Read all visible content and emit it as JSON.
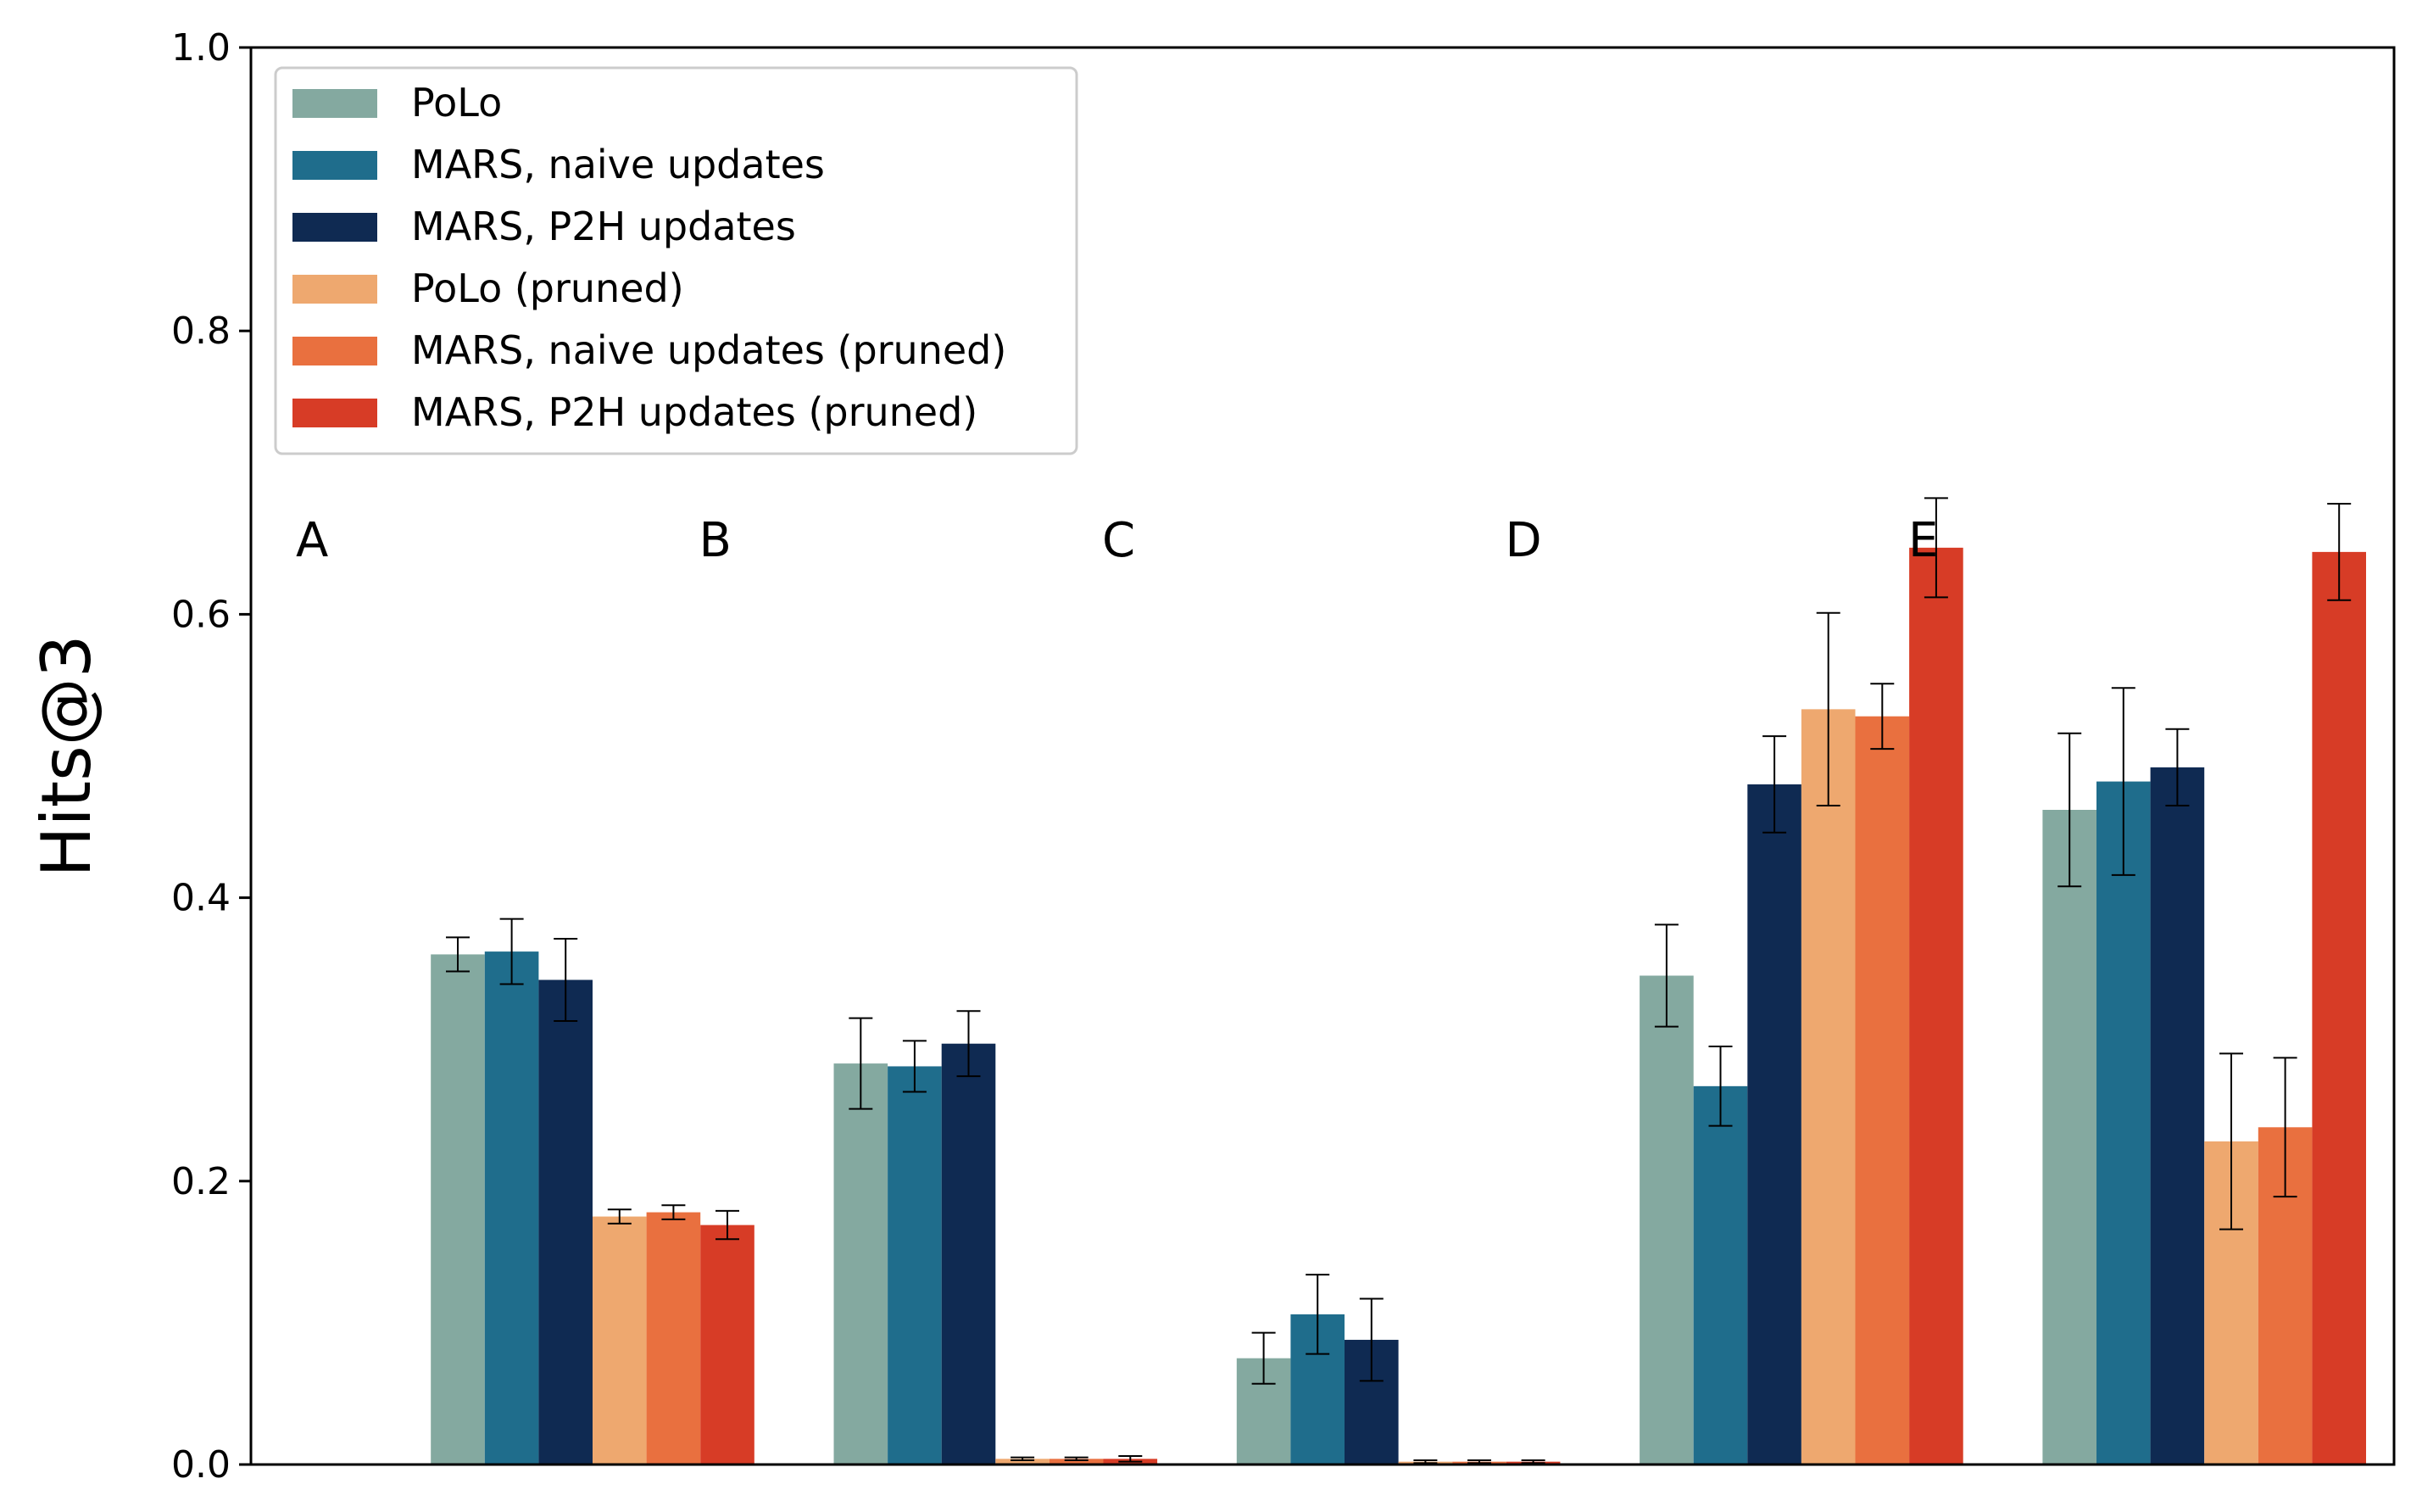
{
  "chart_data": {
    "type": "bar",
    "title": "",
    "xlabel": "",
    "ylabel": "Hits@3",
    "ylim": [
      0,
      1
    ],
    "yticks": [
      "0.0",
      "0.2",
      "0.4",
      "0.6",
      "0.8",
      "1.0"
    ],
    "ytick_values": [
      0,
      0.2,
      0.4,
      0.6,
      0.8,
      1.0
    ],
    "grid": false,
    "legend_position": "top-left",
    "categories": [
      "A",
      "B",
      "C",
      "D",
      "E"
    ],
    "series": [
      {
        "name": "PoLo",
        "color": "#84a9a0",
        "values": [
          0.36,
          0.283,
          0.075,
          0.345,
          0.462
        ],
        "errors": [
          0.012,
          0.032,
          0.018,
          0.036,
          0.054
        ]
      },
      {
        "name": "MARS, naive updates",
        "color": "#1f6d8c",
        "values": [
          0.362,
          0.281,
          0.106,
          0.267,
          0.482
        ],
        "errors": [
          0.023,
          0.018,
          0.028,
          0.028,
          0.066
        ]
      },
      {
        "name": "MARS, P2H updates",
        "color": "#0f2a52",
        "values": [
          0.342,
          0.297,
          0.088,
          0.48,
          0.492
        ],
        "errors": [
          0.029,
          0.023,
          0.029,
          0.034,
          0.027
        ]
      },
      {
        "name": "PoLo (pruned)",
        "color": "#eea86f",
        "values": [
          0.175,
          0.004,
          0.002,
          0.533,
          0.228
        ],
        "errors": [
          0.005,
          0.001,
          0.001,
          0.068,
          0.062
        ]
      },
      {
        "name": "MARS, naive updates (pruned)",
        "color": "#e9703f",
        "values": [
          0.178,
          0.004,
          0.002,
          0.528,
          0.238
        ],
        "errors": [
          0.005,
          0.001,
          0.001,
          0.023,
          0.049
        ]
      },
      {
        "name": "MARS, P2H updates (pruned)",
        "color": "#d73c26",
        "values": [
          0.169,
          0.004,
          0.002,
          0.647,
          0.644
        ],
        "errors": [
          0.01,
          0.002,
          0.001,
          0.035,
          0.034
        ]
      }
    ]
  }
}
